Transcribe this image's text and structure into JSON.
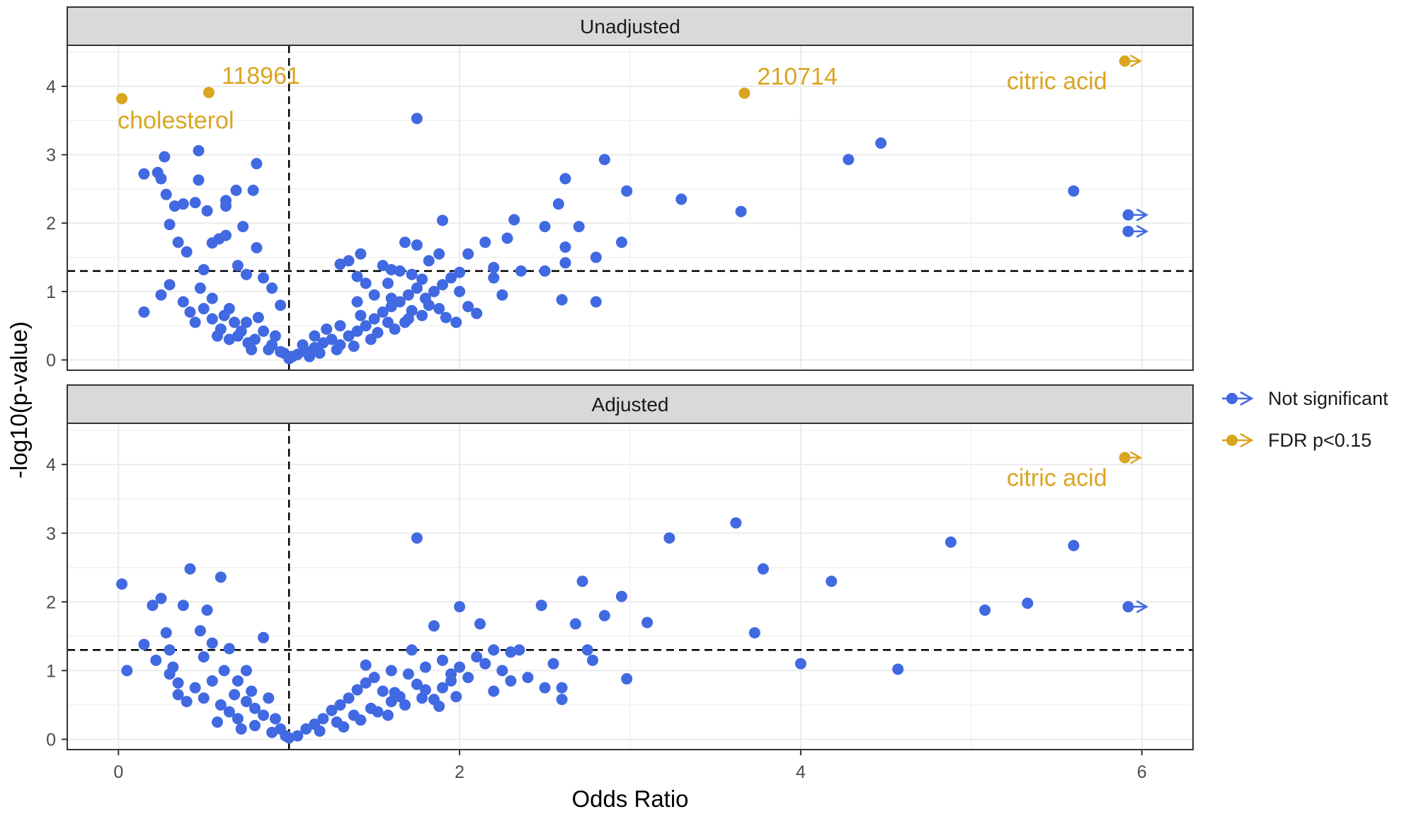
{
  "chart_data": {
    "type": "scatter",
    "xlabel": "Odds Ratio",
    "ylabel": "-log10(p-value)",
    "xlim": [
      -0.3,
      6.3
    ],
    "ylim": [
      -0.15,
      4.6
    ],
    "x_ticks": [
      0,
      2,
      4,
      6
    ],
    "x_tick_labels": [
      "0",
      "2",
      "4",
      "6"
    ],
    "y_ticks": [
      0,
      1,
      2,
      3,
      4
    ],
    "y_tick_labels": [
      "0",
      "1",
      "2",
      "3",
      "4"
    ],
    "reference_lines": {
      "vertical_x": 1,
      "horizontal_y": 1.3
    },
    "legend": {
      "position": "right",
      "entries": [
        {
          "label": "Not significant",
          "color": "#4169E1"
        },
        {
          "label": "FDR p<0.15",
          "color": "#DAA520"
        }
      ]
    },
    "colors": {
      "not_significant": "#4169E1",
      "significant": "#DAA520",
      "panel_border": "#333333",
      "strip_bg": "#D9D9D9",
      "grid": "#EBEBEB"
    },
    "panels": [
      {
        "title": "Unadjusted",
        "significant": [
          {
            "x": 0.02,
            "y": 3.82,
            "label": "cholesterol"
          },
          {
            "x": 0.53,
            "y": 3.91,
            "label": "118961"
          },
          {
            "x": 3.67,
            "y": 3.9,
            "label": "210714"
          },
          {
            "x": 5.9,
            "y": 4.37,
            "label": "citric acid",
            "offscale": true
          }
        ],
        "not_significant": [
          [
            0.15,
            0.7
          ],
          [
            0.15,
            2.72
          ],
          [
            0.23,
            2.74
          ],
          [
            0.25,
            2.65
          ],
          [
            0.27,
            2.97
          ],
          [
            0.28,
            2.42
          ],
          [
            0.33,
            2.25
          ],
          [
            0.3,
            1.98
          ],
          [
            0.38,
            2.28
          ],
          [
            0.45,
            2.3
          ],
          [
            0.35,
            1.72
          ],
          [
            0.4,
            1.58
          ],
          [
            0.47,
            3.06
          ],
          [
            0.47,
            2.63
          ],
          [
            0.52,
            2.18
          ],
          [
            0.55,
            1.71
          ],
          [
            0.5,
            1.32
          ],
          [
            0.59,
            1.77
          ],
          [
            0.63,
            2.25
          ],
          [
            0.63,
            1.82
          ],
          [
            0.63,
            2.33
          ],
          [
            0.69,
            2.48
          ],
          [
            0.73,
            1.95
          ],
          [
            0.79,
            2.48
          ],
          [
            0.81,
            2.87
          ],
          [
            0.81,
            1.64
          ],
          [
            0.7,
            1.38
          ],
          [
            0.75,
            1.25
          ],
          [
            0.85,
            1.2
          ],
          [
            0.9,
            1.05
          ],
          [
            0.95,
            0.8
          ],
          [
            0.25,
            0.95
          ],
          [
            0.3,
            1.1
          ],
          [
            0.38,
            0.85
          ],
          [
            0.42,
            0.7
          ],
          [
            0.48,
            1.05
          ],
          [
            0.55,
            0.6
          ],
          [
            0.6,
            0.45
          ],
          [
            0.65,
            0.75
          ],
          [
            0.7,
            0.35
          ],
          [
            0.75,
            0.55
          ],
          [
            0.8,
            0.3
          ],
          [
            0.82,
            0.62
          ],
          [
            0.88,
            0.15
          ],
          [
            0.92,
            0.35
          ],
          [
            0.97,
            0.1
          ],
          [
            1.0,
            0.02
          ],
          [
            1.02,
            0.05
          ],
          [
            0.55,
            0.9
          ],
          [
            0.62,
            0.65
          ],
          [
            0.68,
            0.55
          ],
          [
            0.72,
            0.42
          ],
          [
            0.76,
            0.25
          ],
          [
            0.85,
            0.42
          ],
          [
            0.9,
            0.22
          ],
          [
            0.95,
            0.12
          ],
          [
            0.58,
            0.35
          ],
          [
            0.65,
            0.3
          ],
          [
            0.78,
            0.15
          ],
          [
            0.5,
            0.75
          ],
          [
            0.45,
            0.55
          ],
          [
            1.05,
            0.08
          ],
          [
            1.1,
            0.12
          ],
          [
            1.15,
            0.18
          ],
          [
            1.2,
            0.25
          ],
          [
            1.25,
            0.3
          ],
          [
            1.3,
            0.22
          ],
          [
            1.35,
            0.35
          ],
          [
            1.4,
            0.42
          ],
          [
            1.45,
            0.5
          ],
          [
            1.5,
            0.6
          ],
          [
            1.55,
            0.7
          ],
          [
            1.6,
            0.78
          ],
          [
            1.65,
            0.85
          ],
          [
            1.7,
            0.95
          ],
          [
            1.75,
            1.05
          ],
          [
            1.8,
            0.9
          ],
          [
            1.85,
            1.0
          ],
          [
            1.9,
            1.1
          ],
          [
            1.95,
            1.2
          ],
          [
            1.22,
            0.45
          ],
          [
            1.3,
            0.5
          ],
          [
            1.38,
            0.2
          ],
          [
            1.42,
            0.65
          ],
          [
            1.48,
            0.3
          ],
          [
            1.52,
            0.4
          ],
          [
            1.58,
            0.55
          ],
          [
            1.62,
            0.45
          ],
          [
            1.68,
            0.55
          ],
          [
            1.72,
            0.72
          ],
          [
            1.78,
            0.65
          ],
          [
            1.82,
            0.8
          ],
          [
            1.88,
            0.75
          ],
          [
            1.92,
            0.62
          ],
          [
            1.98,
            0.55
          ],
          [
            2.05,
            0.78
          ],
          [
            2.1,
            0.68
          ],
          [
            2.0,
            1.0
          ],
          [
            1.15,
            0.35
          ],
          [
            1.28,
            0.15
          ],
          [
            1.08,
            0.22
          ],
          [
            1.12,
            0.05
          ],
          [
            1.18,
            0.1
          ],
          [
            1.7,
            0.6
          ],
          [
            1.6,
            0.9
          ],
          [
            1.5,
            0.95
          ],
          [
            1.4,
            0.85
          ],
          [
            1.35,
            1.45
          ],
          [
            1.42,
            1.55
          ],
          [
            1.3,
            1.4
          ],
          [
            1.55,
            1.38
          ],
          [
            1.6,
            1.32
          ],
          [
            1.68,
            1.72
          ],
          [
            1.75,
            1.68
          ],
          [
            1.82,
            1.45
          ],
          [
            1.88,
            1.55
          ],
          [
            1.9,
            2.04
          ],
          [
            2.0,
            1.28
          ],
          [
            2.05,
            1.55
          ],
          [
            2.15,
            1.72
          ],
          [
            2.2,
            1.35
          ],
          [
            2.28,
            1.78
          ],
          [
            2.32,
            2.05
          ],
          [
            2.36,
            1.3
          ],
          [
            2.5,
            1.95
          ],
          [
            2.58,
            2.28
          ],
          [
            2.62,
            2.65
          ],
          [
            2.62,
            1.42
          ],
          [
            2.7,
            1.95
          ],
          [
            2.8,
            1.5
          ],
          [
            2.85,
            2.93
          ],
          [
            2.95,
            1.72
          ],
          [
            2.98,
            2.47
          ],
          [
            3.3,
            2.35
          ],
          [
            3.65,
            2.17
          ],
          [
            4.28,
            2.93
          ],
          [
            4.47,
            3.17
          ],
          [
            5.6,
            2.47
          ],
          [
            1.75,
            3.53
          ],
          [
            2.2,
            1.2
          ],
          [
            2.25,
            0.95
          ],
          [
            2.6,
            0.88
          ],
          [
            2.8,
            0.85
          ],
          [
            2.5,
            1.3
          ],
          [
            5.92,
            2.12
          ],
          [
            5.92,
            1.88
          ],
          [
            2.62,
            1.65
          ],
          [
            1.58,
            1.12
          ],
          [
            1.65,
            1.3
          ],
          [
            1.72,
            1.25
          ],
          [
            1.78,
            1.18
          ],
          [
            1.4,
            1.22
          ],
          [
            1.45,
            1.12
          ]
        ]
      },
      {
        "title": "Adjusted",
        "significant": [
          {
            "x": 5.9,
            "y": 4.1,
            "label": "citric acid",
            "offscale": true
          }
        ],
        "not_significant": [
          [
            0.02,
            2.26
          ],
          [
            0.05,
            1.0
          ],
          [
            0.2,
            1.95
          ],
          [
            0.25,
            2.05
          ],
          [
            0.28,
            1.55
          ],
          [
            0.3,
            1.3
          ],
          [
            0.32,
            1.05
          ],
          [
            0.35,
            0.82
          ],
          [
            0.38,
            1.95
          ],
          [
            0.4,
            0.55
          ],
          [
            0.42,
            2.48
          ],
          [
            0.48,
            1.58
          ],
          [
            0.5,
            1.2
          ],
          [
            0.52,
            1.88
          ],
          [
            0.55,
            1.4
          ],
          [
            0.6,
            2.36
          ],
          [
            0.62,
            1.0
          ],
          [
            0.65,
            1.32
          ],
          [
            0.7,
            0.85
          ],
          [
            0.75,
            1.0
          ],
          [
            0.8,
            0.45
          ],
          [
            0.85,
            1.48
          ],
          [
            0.88,
            0.6
          ],
          [
            0.92,
            0.3
          ],
          [
            0.95,
            0.15
          ],
          [
            0.98,
            0.05
          ],
          [
            1.0,
            0.02
          ],
          [
            0.15,
            1.38
          ],
          [
            0.22,
            1.15
          ],
          [
            0.3,
            0.95
          ],
          [
            0.35,
            0.65
          ],
          [
            0.45,
            0.75
          ],
          [
            0.5,
            0.6
          ],
          [
            0.55,
            0.85
          ],
          [
            0.6,
            0.5
          ],
          [
            0.65,
            0.4
          ],
          [
            0.7,
            0.3
          ],
          [
            0.75,
            0.55
          ],
          [
            0.8,
            0.2
          ],
          [
            0.85,
            0.35
          ],
          [
            0.9,
            0.1
          ],
          [
            0.58,
            0.25
          ],
          [
            0.68,
            0.65
          ],
          [
            0.78,
            0.7
          ],
          [
            0.72,
            0.15
          ],
          [
            1.05,
            0.05
          ],
          [
            1.1,
            0.15
          ],
          [
            1.15,
            0.22
          ],
          [
            1.2,
            0.3
          ],
          [
            1.25,
            0.42
          ],
          [
            1.3,
            0.5
          ],
          [
            1.35,
            0.6
          ],
          [
            1.4,
            0.72
          ],
          [
            1.45,
            0.82
          ],
          [
            1.5,
            0.9
          ],
          [
            1.55,
            0.7
          ],
          [
            1.6,
            0.55
          ],
          [
            1.65,
            0.62
          ],
          [
            1.7,
            0.95
          ],
          [
            1.75,
            0.8
          ],
          [
            1.8,
            0.72
          ],
          [
            1.85,
            0.58
          ],
          [
            1.9,
            0.75
          ],
          [
            1.95,
            0.85
          ],
          [
            2.0,
            1.05
          ],
          [
            2.05,
            0.9
          ],
          [
            2.1,
            1.2
          ],
          [
            2.15,
            1.1
          ],
          [
            2.2,
            1.3
          ],
          [
            2.25,
            1.0
          ],
          [
            1.28,
            0.25
          ],
          [
            1.38,
            0.35
          ],
          [
            1.48,
            0.45
          ],
          [
            1.58,
            0.35
          ],
          [
            1.68,
            0.5
          ],
          [
            1.78,
            0.6
          ],
          [
            1.88,
            0.48
          ],
          [
            1.98,
            0.62
          ],
          [
            1.18,
            0.12
          ],
          [
            1.32,
            0.18
          ],
          [
            1.42,
            0.28
          ],
          [
            1.52,
            0.4
          ],
          [
            1.62,
            0.68
          ],
          [
            1.72,
            1.3
          ],
          [
            1.75,
            2.93
          ],
          [
            1.85,
            1.65
          ],
          [
            2.0,
            1.93
          ],
          [
            2.12,
            1.68
          ],
          [
            2.3,
            1.27
          ],
          [
            2.35,
            1.3
          ],
          [
            2.48,
            1.95
          ],
          [
            2.55,
            1.1
          ],
          [
            2.6,
            0.75
          ],
          [
            2.68,
            1.68
          ],
          [
            2.72,
            2.3
          ],
          [
            2.75,
            1.3
          ],
          [
            2.78,
            1.15
          ],
          [
            2.85,
            1.8
          ],
          [
            2.95,
            2.08
          ],
          [
            2.98,
            0.88
          ],
          [
            3.1,
            1.7
          ],
          [
            3.23,
            2.93
          ],
          [
            3.62,
            3.15
          ],
          [
            3.73,
            1.55
          ],
          [
            3.78,
            2.48
          ],
          [
            4.0,
            1.1
          ],
          [
            4.18,
            2.3
          ],
          [
            4.57,
            1.02
          ],
          [
            4.88,
            2.87
          ],
          [
            5.08,
            1.88
          ],
          [
            5.33,
            1.98
          ],
          [
            5.6,
            2.82
          ],
          [
            5.92,
            1.93
          ],
          [
            2.4,
            0.9
          ],
          [
            2.5,
            0.75
          ],
          [
            2.6,
            0.58
          ],
          [
            2.3,
            0.85
          ],
          [
            2.2,
            0.7
          ],
          [
            1.9,
            1.15
          ],
          [
            1.95,
            0.95
          ],
          [
            1.8,
            1.05
          ],
          [
            1.6,
            1.0
          ],
          [
            1.45,
            1.08
          ]
        ]
      }
    ]
  }
}
